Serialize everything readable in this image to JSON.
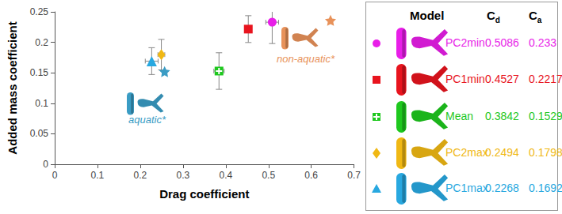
{
  "chart_data": {
    "type": "scatter",
    "x_label": "Drag coefficient",
    "y_label": "Added mass coefficient",
    "xlim": [
      0,
      0.7
    ],
    "xticks": [
      0,
      0.1,
      0.2,
      0.3,
      0.4,
      0.5,
      0.6,
      0.7
    ],
    "ylim": [
      0,
      0.25
    ],
    "yticks": [
      0,
      0.05,
      0.1,
      0.15,
      0.2,
      0.25
    ],
    "grid": false,
    "series": [
      {
        "name": "PC2min",
        "color": "#e81ee8",
        "marker": "circle",
        "x": 0.5086,
        "y": 0.233,
        "x_err": 0.015,
        "y_err": 0.035
      },
      {
        "name": "PC1min",
        "color": "#e8141e",
        "marker": "square",
        "x": 0.4527,
        "y": 0.2217,
        "x_err": 0.004,
        "y_err": 0.022
      },
      {
        "name": "Mean",
        "color": "#1ec81e",
        "marker": "crossed_square",
        "x": 0.3842,
        "y": 0.1529,
        "x_err": 0.012,
        "y_err": 0.03
      },
      {
        "name": "PC2max",
        "color": "#f0b814",
        "marker": "diamond",
        "x": 0.2494,
        "y": 0.1798,
        "x_err": 0.008,
        "y_err": 0.025
      },
      {
        "name": "PC1max",
        "color": "#28a8e0",
        "marker": "triangle",
        "x": 0.2268,
        "y": 0.1692,
        "x_err": 0.015,
        "y_err": 0.022
      }
    ],
    "references": [
      {
        "name": "aquatic*",
        "color": "#3a9cc4",
        "marker": "star",
        "x": 0.257,
        "y": 0.152
      },
      {
        "name": "non-aquatic*",
        "color": "#e8925a",
        "marker": "star",
        "x": 0.645,
        "y": 0.236
      }
    ]
  },
  "table": {
    "header": [
      "Model",
      {
        "text": "C",
        "subscript": "d"
      },
      {
        "text": "C",
        "subscript": "a"
      }
    ]
  }
}
